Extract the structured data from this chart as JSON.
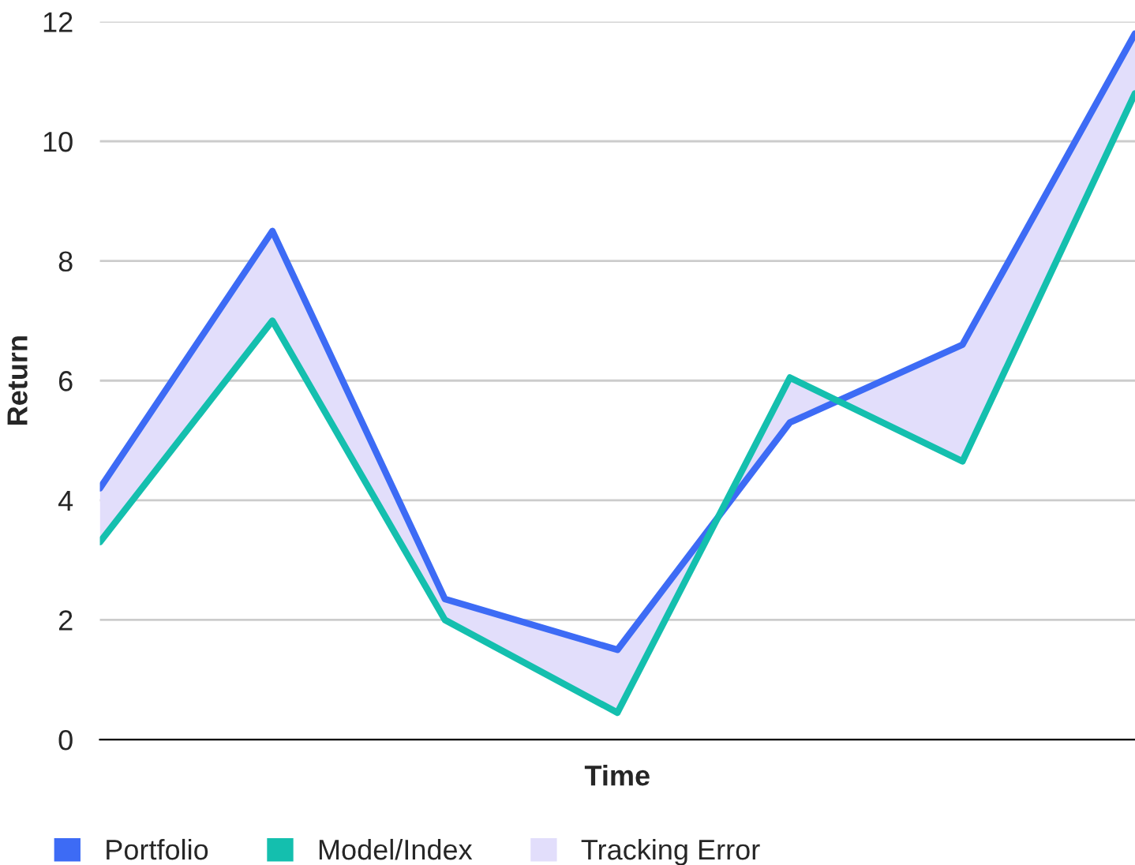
{
  "chart_data": {
    "type": "line",
    "xlabel": "Time",
    "ylabel": "Return",
    "categories": [
      null,
      null,
      null,
      null,
      null,
      null,
      null
    ],
    "series": [
      {
        "name": "Portfolio",
        "color": "#3d6bf5",
        "values": [
          4.2,
          8.5,
          2.35,
          1.5,
          5.3,
          6.6,
          11.8
        ]
      },
      {
        "name": "Model/Index",
        "color": "#14bfae",
        "values": [
          3.3,
          7.0,
          2.0,
          0.45,
          6.05,
          4.65,
          10.8
        ]
      },
      {
        "name": "Tracking Error",
        "type": "area",
        "color": "#e2defb",
        "values": [
          null,
          null,
          null,
          null,
          null,
          null,
          null
        ],
        "lower": [
          3.3,
          7.0,
          2.0,
          0.45,
          6.05,
          4.65,
          10.8
        ],
        "upper": [
          4.2,
          8.5,
          2.35,
          1.5,
          5.3,
          6.6,
          11.8
        ]
      }
    ],
    "ylim": [
      0,
      12
    ],
    "yticks": [
      0,
      2,
      4,
      6,
      8,
      10,
      12
    ],
    "grid": "y",
    "legend": "bottom",
    "marker": "none",
    "line_style": "solid"
  }
}
